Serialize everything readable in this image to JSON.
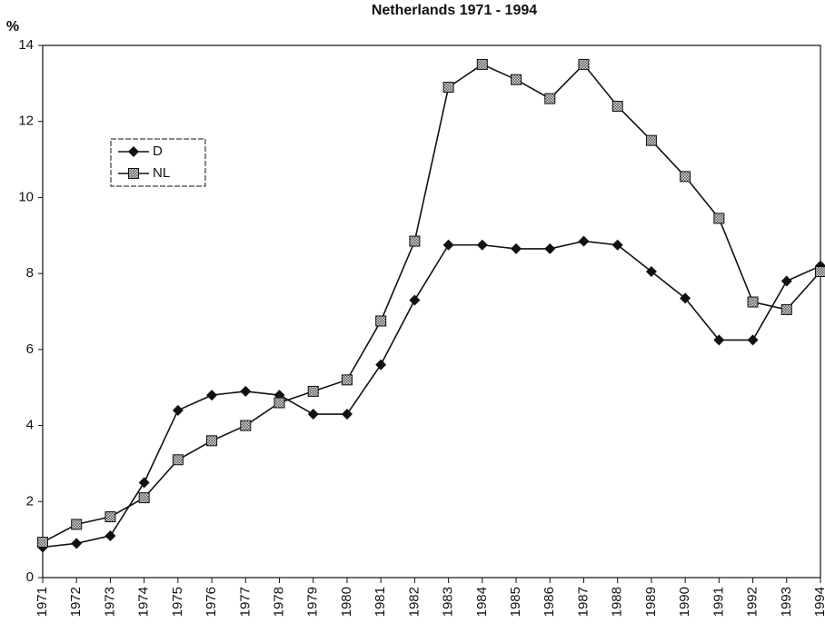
{
  "chart_data": {
    "type": "line",
    "title": "Netherlands 1971 - 1994",
    "y_label": "%",
    "categories": [
      "1971",
      "1972",
      "1973",
      "1974",
      "1975",
      "1976",
      "1977",
      "1978",
      "1979",
      "1980",
      "1981",
      "1982",
      "1983",
      "1984",
      "1985",
      "1986",
      "1987",
      "1988",
      "1989",
      "1990",
      "1991",
      "1992",
      "1993",
      "1994"
    ],
    "series": [
      {
        "name": "D",
        "color": "#111111",
        "marker": "diamond",
        "values": [
          0.8,
          0.9,
          1.1,
          2.5,
          4.4,
          4.8,
          4.9,
          4.8,
          4.3,
          4.3,
          5.6,
          7.3,
          8.75,
          8.75,
          8.65,
          8.65,
          8.85,
          8.75,
          8.05,
          7.35,
          6.25,
          6.25,
          7.8,
          8.2
        ]
      },
      {
        "name": "NL",
        "color": "#111111",
        "marker": "square",
        "values": [
          0.93,
          1.4,
          1.6,
          2.1,
          3.1,
          3.6,
          4.0,
          4.6,
          4.9,
          5.2,
          6.75,
          8.85,
          12.9,
          13.5,
          13.1,
          12.6,
          13.5,
          12.4,
          11.5,
          10.55,
          9.45,
          7.25,
          7.05,
          8.05
        ]
      }
    ],
    "ylim": [
      0,
      14
    ],
    "yticks": [
      0,
      2,
      4,
      6,
      8,
      10,
      12,
      14
    ],
    "grid": false,
    "legend": "upper-left"
  }
}
